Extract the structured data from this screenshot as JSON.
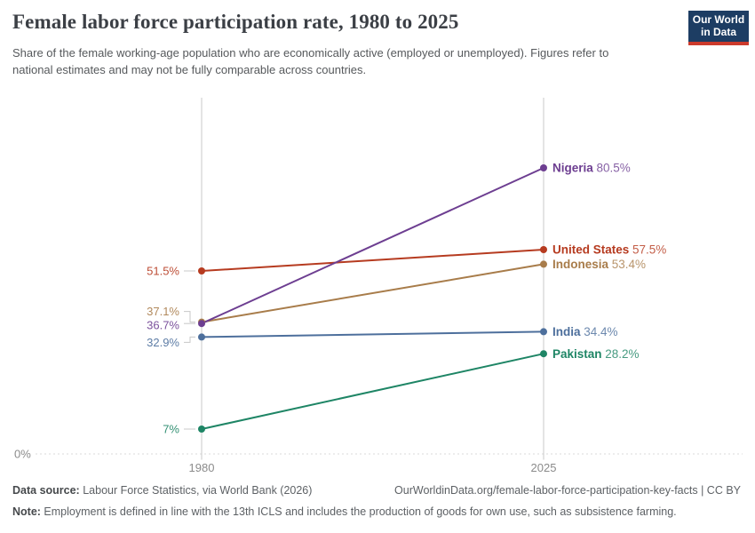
{
  "header": {
    "title": "Female labor force participation rate, 1980 to 2025",
    "subtitle": "Share of the female working-age population who are economically active (employed or unemployed). Figures refer to national estimates and may not be fully comparable across countries.",
    "logo": {
      "line1": "Our World",
      "line2": "in Data"
    }
  },
  "chart_data": {
    "type": "line",
    "title": "Female labor force participation rate, 1980 to 2025",
    "x": [
      1980,
      2025
    ],
    "x_tick_labels": [
      "1980",
      "2025"
    ],
    "ylim": [
      0,
      100
    ],
    "y_zero_label": "0%",
    "ylabel": "",
    "xlabel": "",
    "grid": "dotted zero gridline only",
    "legend_position": "labels at line ends",
    "series": [
      {
        "name": "Nigeria",
        "color": "#6d3e91",
        "values": [
          36.7,
          80.5
        ],
        "start_label": "36.7%",
        "end_value_label": "80.5%"
      },
      {
        "name": "United States",
        "color": "#b63b20",
        "values": [
          51.5,
          57.5
        ],
        "start_label": "51.5%",
        "end_value_label": "57.5%"
      },
      {
        "name": "Indonesia",
        "color": "#a87c4a",
        "values": [
          37.1,
          53.4
        ],
        "start_label": "37.1%",
        "end_value_label": "53.4%"
      },
      {
        "name": "India",
        "color": "#4d6f9c",
        "values": [
          32.9,
          34.4
        ],
        "start_label": "32.9%",
        "end_value_label": "34.4%"
      },
      {
        "name": "Pakistan",
        "color": "#1e8565",
        "values": [
          7.0,
          28.2
        ],
        "start_label": "7%",
        "end_value_label": "28.2%"
      }
    ],
    "axis_color": "#c8c8c8",
    "tick_label_color": "#8b8b8b"
  },
  "footer": {
    "data_source_label": "Data source:",
    "data_source_text": " Labour Force Statistics, via World Bank (2026)",
    "attribution": "OurWorldinData.org/female-labor-force-participation-key-facts | CC BY",
    "note_label": "Note:",
    "note_text": " Employment is defined in line with the 13th ICLS and includes the production of goods for own use, such as subsistence farming."
  }
}
